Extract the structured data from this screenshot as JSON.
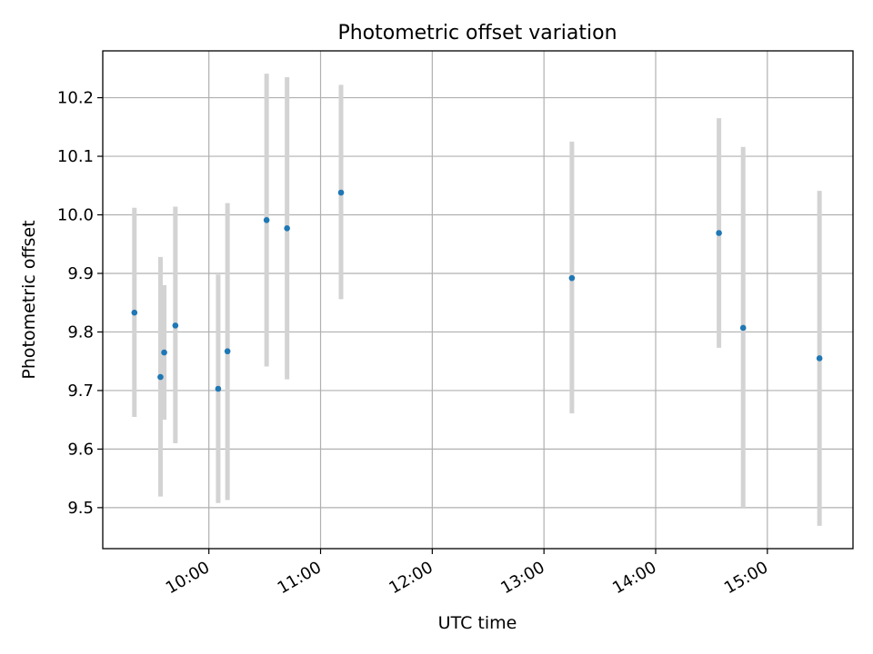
{
  "chart_data": {
    "type": "scatter",
    "title": "Photometric offset variation",
    "xlabel": "UTC time",
    "ylabel": "Photometric offset",
    "x_ticks": [
      "10:00",
      "11:00",
      "12:00",
      "13:00",
      "14:00",
      "15:00"
    ],
    "y_ticks": [
      "9.5",
      "9.6",
      "9.7",
      "9.8",
      "9.9",
      "10.0",
      "10.1",
      "10.2"
    ],
    "xlim": [
      "09:03",
      "15:46"
    ],
    "ylim": [
      9.43,
      10.28
    ],
    "grid": true,
    "point_color": "#1f77b4",
    "errorbar_color": "#d3d3d3",
    "points": [
      {
        "x": "09:20",
        "y": 9.833,
        "ylow": 9.655,
        "yhigh": 10.012
      },
      {
        "x": "09:34",
        "y": 9.723,
        "ylow": 9.519,
        "yhigh": 9.928
      },
      {
        "x": "09:36",
        "y": 9.765,
        "ylow": 9.65,
        "yhigh": 9.88
      },
      {
        "x": "09:42",
        "y": 9.811,
        "ylow": 9.61,
        "yhigh": 10.014
      },
      {
        "x": "10:05",
        "y": 9.703,
        "ylow": 9.508,
        "yhigh": 9.898
      },
      {
        "x": "10:10",
        "y": 9.767,
        "ylow": 9.513,
        "yhigh": 10.02
      },
      {
        "x": "10:31",
        "y": 9.991,
        "ylow": 9.741,
        "yhigh": 10.241
      },
      {
        "x": "10:42",
        "y": 9.977,
        "ylow": 9.719,
        "yhigh": 10.235
      },
      {
        "x": "11:11",
        "y": 10.038,
        "ylow": 9.856,
        "yhigh": 10.222
      },
      {
        "x": "13:15",
        "y": 9.892,
        "ylow": 9.661,
        "yhigh": 10.125
      },
      {
        "x": "14:34",
        "y": 9.969,
        "ylow": 9.773,
        "yhigh": 10.165
      },
      {
        "x": "14:47",
        "y": 9.807,
        "ylow": 9.5,
        "yhigh": 10.116
      },
      {
        "x": "15:28",
        "y": 9.755,
        "ylow": 9.469,
        "yhigh": 10.041
      }
    ]
  }
}
